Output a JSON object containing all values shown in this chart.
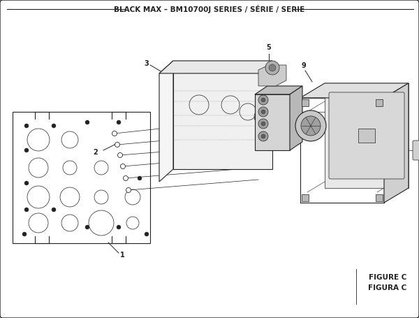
{
  "title": "BLACK MAX – BM10700J SERIES / SÉRIE / SERIE",
  "title_fontsize": 7.5,
  "fig_width": 6.0,
  "fig_height": 4.55,
  "bg_color": "#ffffff",
  "line_color": "#222222",
  "figure_label": "FIGURE C",
  "figura_label": "FIGURA C",
  "label_fontsize": 7,
  "figure_fontsize": 7.5
}
